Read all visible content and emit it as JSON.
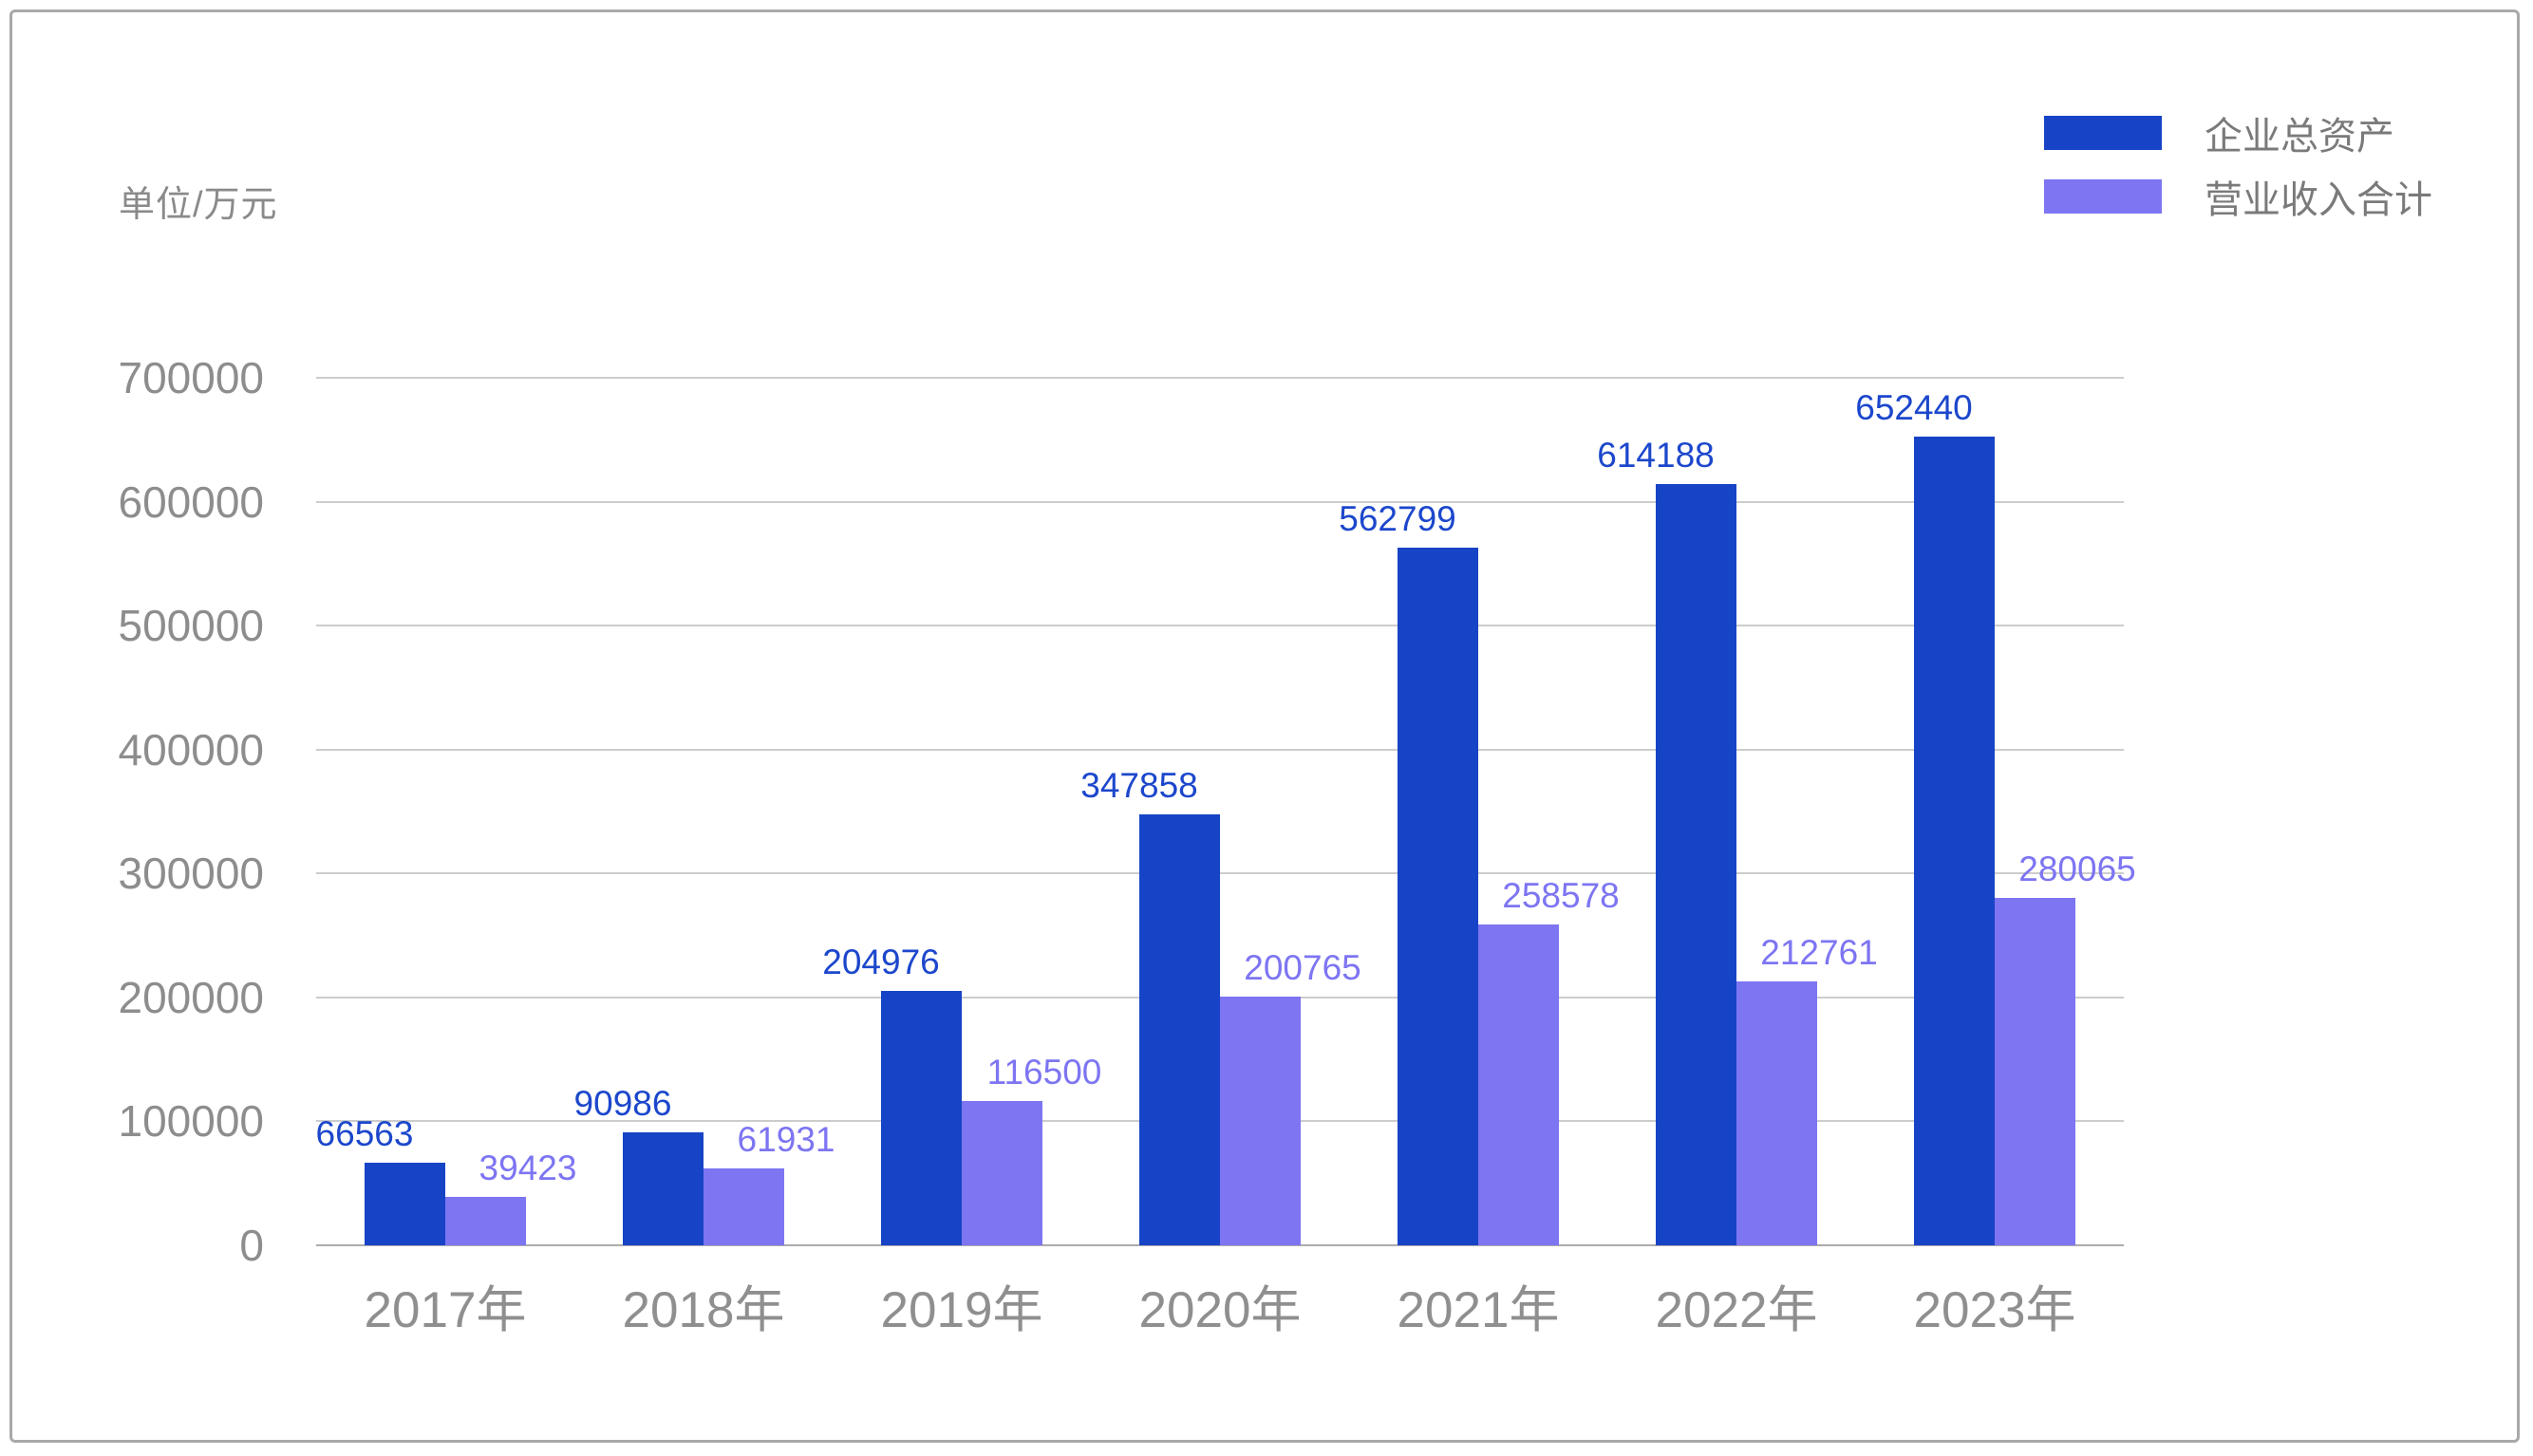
{
  "frame": {
    "unit_label": "单位/万元"
  },
  "legend": {
    "position": "top-right",
    "items": [
      {
        "label": "企业总资产",
        "color": "#1744c6"
      },
      {
        "label": "营业收入合计",
        "color": "#7d75f2"
      }
    ]
  },
  "chart_data": {
    "type": "bar",
    "title": "",
    "unit_label": "单位/万元",
    "categories": [
      "2017年",
      "2018年",
      "2019年",
      "2020年",
      "2021年",
      "2022年",
      "2023年"
    ],
    "series": [
      {
        "name": "企业总资产",
        "color": "#1744c6",
        "label_color": "#1c47cc",
        "values": [
          66563,
          90986,
          204976,
          347858,
          562799,
          614188,
          652440
        ]
      },
      {
        "name": "营业收入合计",
        "color": "#7d75f2",
        "label_color": "#7d75f2",
        "values": [
          39423,
          61931,
          116500,
          200765,
          258578,
          212761,
          280065
        ]
      }
    ],
    "ylim": [
      0,
      700000
    ],
    "yticks": [
      0,
      100000,
      200000,
      300000,
      400000,
      500000,
      600000,
      700000
    ],
    "grid": true,
    "legend_position": "top-right",
    "value_labels_shown": true,
    "axis_text_color": "#8d8d8d",
    "gridline_color": "#cccccc",
    "baseline_color": "#ababab"
  }
}
